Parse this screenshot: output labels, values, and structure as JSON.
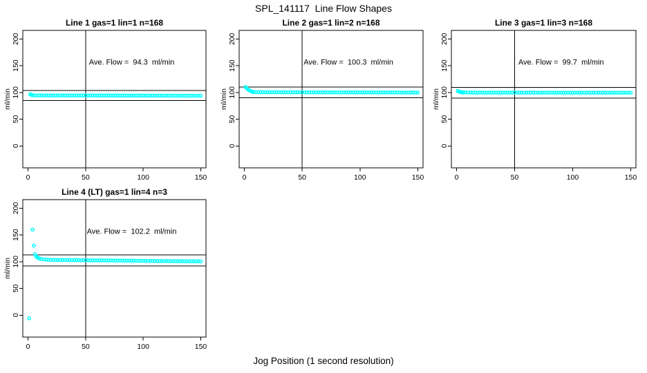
{
  "figure": {
    "title": "SPL_141117  Line Flow Shapes",
    "xlabel": "Jog Position (1 second resolution)",
    "background": "#ffffff",
    "axis_color": "#000000",
    "point_color": "#00ffff"
  },
  "chart_data": [
    {
      "type": "scatter",
      "title": "Line 1 gas=1 lin=1 n=168",
      "ylabel": "ml/min",
      "annotation": "Ave. Flow =  94.3  ml/min",
      "ave_flow_ml_min": 94.3,
      "n": 168,
      "xlim": [
        -4.5,
        154.5
      ],
      "ylim": [
        -41,
        216
      ],
      "xticks": [
        0,
        50,
        100,
        150
      ],
      "yticks": [
        0,
        50,
        100,
        150,
        200
      ],
      "vline_x": 50,
      "hlines": [
        103.7,
        84.9
      ],
      "annotation_pos": [
        90,
        152
      ],
      "legend_position": "none",
      "grid": false,
      "points": [
        [
          2,
          96.5
        ],
        [
          3,
          95.4
        ],
        [
          4,
          94.9
        ],
        [
          6,
          94.5
        ],
        [
          8,
          94.2
        ],
        [
          10,
          94.6
        ],
        [
          12,
          94.3
        ],
        [
          14,
          94.1
        ],
        [
          16,
          94.5
        ],
        [
          18,
          94.2
        ],
        [
          20,
          94.4
        ],
        [
          22,
          94.1
        ],
        [
          24,
          94.3
        ],
        [
          26,
          94.5
        ],
        [
          28,
          94.2
        ],
        [
          30,
          94.4
        ],
        [
          32,
          94.1
        ],
        [
          34,
          94.3
        ],
        [
          36,
          94.2
        ],
        [
          38,
          94.4
        ],
        [
          40,
          94.1
        ],
        [
          42,
          94.3
        ],
        [
          44,
          94.2
        ],
        [
          46,
          94.4
        ],
        [
          48,
          94.1
        ],
        [
          50,
          94.3
        ],
        [
          52,
          94.2
        ],
        [
          54,
          94.4
        ],
        [
          56,
          94.1
        ],
        [
          58,
          94.3
        ],
        [
          60,
          94.2
        ],
        [
          62,
          94.3
        ],
        [
          64,
          94.1
        ],
        [
          66,
          94.2
        ],
        [
          68,
          94.3
        ],
        [
          70,
          94.1
        ],
        [
          72,
          94.2
        ],
        [
          74,
          94.3
        ],
        [
          76,
          94.0
        ],
        [
          78,
          94.2
        ],
        [
          80,
          94.1
        ],
        [
          82,
          94.2
        ],
        [
          84,
          94.0
        ],
        [
          86,
          94.2
        ],
        [
          88,
          94.1
        ],
        [
          90,
          94.2
        ],
        [
          92,
          94.0
        ],
        [
          94,
          94.1
        ],
        [
          96,
          94.2
        ],
        [
          98,
          94.0
        ],
        [
          100,
          94.1
        ],
        [
          102,
          93.9
        ],
        [
          104,
          94.1
        ],
        [
          106,
          94.0
        ],
        [
          108,
          94.1
        ],
        [
          110,
          93.9
        ],
        [
          112,
          94.0
        ],
        [
          114,
          94.1
        ],
        [
          116,
          93.9
        ],
        [
          118,
          94.0
        ],
        [
          120,
          93.9
        ],
        [
          122,
          94.0
        ],
        [
          124,
          93.8
        ],
        [
          126,
          94.0
        ],
        [
          128,
          93.9
        ],
        [
          130,
          93.9
        ],
        [
          132,
          93.8
        ],
        [
          134,
          93.9
        ],
        [
          136,
          93.8
        ],
        [
          138,
          93.9
        ],
        [
          140,
          93.8
        ],
        [
          142,
          93.9
        ],
        [
          144,
          93.8
        ],
        [
          146,
          93.8
        ],
        [
          148,
          93.9
        ],
        [
          150,
          93.8
        ]
      ]
    },
    {
      "type": "scatter",
      "title": "Line 2 gas=1 lin=2 n=168",
      "ylabel": "ml/min",
      "annotation": "Ave. Flow =  100.3  ml/min",
      "ave_flow_ml_min": 100.3,
      "n": 168,
      "xlim": [
        -4.5,
        154.5
      ],
      "ylim": [
        -41,
        216
      ],
      "xticks": [
        0,
        50,
        100,
        150
      ],
      "yticks": [
        0,
        50,
        100,
        150,
        200
      ],
      "vline_x": 50,
      "hlines": [
        110.3,
        90.3
      ],
      "annotation_pos": [
        90,
        152
      ],
      "legend_position": "none",
      "grid": false,
      "points": [
        [
          1,
          110.3
        ],
        [
          2,
          108.0
        ],
        [
          3,
          106.0
        ],
        [
          4,
          104.3
        ],
        [
          5,
          103.0
        ],
        [
          6,
          102.0
        ],
        [
          7,
          101.3
        ],
        [
          8,
          100.8
        ],
        [
          10,
          100.5
        ],
        [
          12,
          100.4
        ],
        [
          14,
          100.6
        ],
        [
          16,
          100.3
        ],
        [
          18,
          100.5
        ],
        [
          20,
          100.2
        ],
        [
          22,
          100.4
        ],
        [
          24,
          100.3
        ],
        [
          26,
          100.5
        ],
        [
          28,
          100.2
        ],
        [
          30,
          100.4
        ],
        [
          32,
          100.3
        ],
        [
          34,
          100.2
        ],
        [
          36,
          100.4
        ],
        [
          38,
          100.3
        ],
        [
          40,
          100.2
        ],
        [
          42,
          100.4
        ],
        [
          44,
          100.2
        ],
        [
          46,
          100.3
        ],
        [
          48,
          100.2
        ],
        [
          50,
          100.4
        ],
        [
          52,
          100.2
        ],
        [
          54,
          100.3
        ],
        [
          56,
          100.1
        ],
        [
          58,
          100.3
        ],
        [
          60,
          100.2
        ],
        [
          62,
          100.3
        ],
        [
          64,
          100.1
        ],
        [
          66,
          100.2
        ],
        [
          68,
          100.3
        ],
        [
          70,
          100.1
        ],
        [
          72,
          100.2
        ],
        [
          74,
          100.1
        ],
        [
          76,
          100.3
        ],
        [
          78,
          100.1
        ],
        [
          80,
          100.2
        ],
        [
          82,
          100.0
        ],
        [
          84,
          100.2
        ],
        [
          86,
          100.1
        ],
        [
          88,
          100.2
        ],
        [
          90,
          100.0
        ],
        [
          92,
          100.1
        ],
        [
          94,
          100.2
        ],
        [
          96,
          100.0
        ],
        [
          98,
          100.1
        ],
        [
          100,
          100.0
        ],
        [
          102,
          100.1
        ],
        [
          104,
          100.0
        ],
        [
          106,
          100.1
        ],
        [
          108,
          99.9
        ],
        [
          110,
          100.1
        ],
        [
          112,
          100.0
        ],
        [
          114,
          100.0
        ],
        [
          116,
          99.9
        ],
        [
          118,
          100.0
        ],
        [
          120,
          99.9
        ],
        [
          122,
          100.0
        ],
        [
          124,
          99.9
        ],
        [
          126,
          100.0
        ],
        [
          128,
          99.8
        ],
        [
          130,
          100.0
        ],
        [
          132,
          99.9
        ],
        [
          134,
          99.9
        ],
        [
          136,
          99.8
        ],
        [
          138,
          99.9
        ],
        [
          140,
          99.8
        ],
        [
          142,
          99.9
        ],
        [
          144,
          99.8
        ],
        [
          146,
          99.9
        ],
        [
          148,
          99.8
        ],
        [
          150,
          99.8
        ]
      ]
    },
    {
      "type": "scatter",
      "title": "Line 3 gas=1 lin=3 n=168",
      "ylabel": "ml/min",
      "annotation": "Ave. Flow =  99.7  ml/min",
      "ave_flow_ml_min": 99.7,
      "n": 168,
      "xlim": [
        -4.5,
        154.5
      ],
      "ylim": [
        -41,
        216
      ],
      "xticks": [
        0,
        50,
        100,
        150
      ],
      "yticks": [
        0,
        50,
        100,
        150,
        200
      ],
      "vline_x": 50,
      "hlines": [
        109.7,
        89.7
      ],
      "annotation_pos": [
        90,
        152
      ],
      "legend_position": "none",
      "grid": false,
      "points": [
        [
          1,
          102.8
        ],
        [
          2,
          101.6
        ],
        [
          3,
          100.9
        ],
        [
          4,
          100.4
        ],
        [
          5,
          100.1
        ],
        [
          6,
          99.9
        ],
        [
          8,
          100.2
        ],
        [
          10,
          99.6
        ],
        [
          12,
          100.0
        ],
        [
          14,
          99.4
        ],
        [
          16,
          99.9
        ],
        [
          18,
          99.5
        ],
        [
          20,
          100.1
        ],
        [
          22,
          99.6
        ],
        [
          24,
          99.8
        ],
        [
          26,
          99.4
        ],
        [
          28,
          100.0
        ],
        [
          30,
          99.6
        ],
        [
          32,
          99.9
        ],
        [
          34,
          99.5
        ],
        [
          36,
          99.8
        ],
        [
          38,
          99.4
        ],
        [
          40,
          99.9
        ],
        [
          42,
          99.6
        ],
        [
          44,
          99.8
        ],
        [
          46,
          99.5
        ],
        [
          48,
          99.9
        ],
        [
          50,
          99.6
        ],
        [
          52,
          99.8
        ],
        [
          54,
          99.4
        ],
        [
          56,
          99.8
        ],
        [
          58,
          99.5
        ],
        [
          60,
          99.7
        ],
        [
          62,
          99.9
        ],
        [
          64,
          99.5
        ],
        [
          66,
          99.8
        ],
        [
          68,
          99.4
        ],
        [
          70,
          99.7
        ],
        [
          72,
          99.5
        ],
        [
          74,
          99.8
        ],
        [
          76,
          99.4
        ],
        [
          78,
          99.7
        ],
        [
          80,
          99.5
        ],
        [
          82,
          99.8
        ],
        [
          84,
          99.4
        ],
        [
          86,
          99.7
        ],
        [
          88,
          99.5
        ],
        [
          90,
          99.7
        ],
        [
          92,
          99.4
        ],
        [
          94,
          99.7
        ],
        [
          96,
          99.5
        ],
        [
          98,
          99.7
        ],
        [
          100,
          99.4
        ],
        [
          102,
          99.6
        ],
        [
          104,
          99.5
        ],
        [
          106,
          99.7
        ],
        [
          108,
          99.4
        ],
        [
          110,
          99.6
        ],
        [
          112,
          99.4
        ],
        [
          114,
          99.6
        ],
        [
          116,
          99.5
        ],
        [
          118,
          99.6
        ],
        [
          120,
          99.4
        ],
        [
          122,
          99.6
        ],
        [
          124,
          99.4
        ],
        [
          126,
          99.5
        ],
        [
          128,
          99.6
        ],
        [
          130,
          99.4
        ],
        [
          132,
          99.5
        ],
        [
          134,
          99.4
        ],
        [
          136,
          99.5
        ],
        [
          138,
          99.4
        ],
        [
          140,
          99.5
        ],
        [
          142,
          99.4
        ],
        [
          144,
          99.5
        ],
        [
          146,
          99.4
        ],
        [
          148,
          99.5
        ],
        [
          150,
          99.4
        ]
      ]
    },
    {
      "type": "scatter",
      "title": "Line 4 (LT) gas=1 lin=4 n=3",
      "ylabel": "ml/min",
      "annotation": "Ave. Flow =  102.2  ml/min",
      "ave_flow_ml_min": 102.2,
      "n": 3,
      "xlim": [
        -4.5,
        154.5
      ],
      "ylim": [
        -41,
        216
      ],
      "xticks": [
        0,
        50,
        100,
        150
      ],
      "yticks": [
        0,
        50,
        100,
        150,
        200
      ],
      "vline_x": 50,
      "hlines": [
        112.4,
        92.0
      ],
      "annotation_pos": [
        90,
        152
      ],
      "legend_position": "none",
      "grid": false,
      "points": [
        [
          1,
          -6
        ],
        [
          4,
          160
        ],
        [
          5,
          130
        ],
        [
          6,
          114
        ],
        [
          7,
          110.5
        ],
        [
          8,
          108
        ],
        [
          9,
          106.8
        ],
        [
          10,
          105.8
        ],
        [
          12,
          104.8
        ],
        [
          14,
          104.2
        ],
        [
          16,
          103.8
        ],
        [
          18,
          103.5
        ],
        [
          20,
          103.6
        ],
        [
          22,
          103.2
        ],
        [
          24,
          103.4
        ],
        [
          26,
          103.0
        ],
        [
          28,
          103.3
        ],
        [
          30,
          102.9
        ],
        [
          32,
          103.2
        ],
        [
          34,
          102.8
        ],
        [
          36,
          103.1
        ],
        [
          38,
          102.7
        ],
        [
          40,
          103.0
        ],
        [
          42,
          102.7
        ],
        [
          44,
          102.9
        ],
        [
          46,
          102.6
        ],
        [
          48,
          102.8
        ],
        [
          50,
          102.5
        ],
        [
          52,
          102.8
        ],
        [
          54,
          102.4
        ],
        [
          56,
          102.7
        ],
        [
          58,
          102.3
        ],
        [
          60,
          102.6
        ],
        [
          62,
          102.3
        ],
        [
          64,
          102.5
        ],
        [
          66,
          102.2
        ],
        [
          68,
          102.4
        ],
        [
          70,
          102.1
        ],
        [
          72,
          102.4
        ],
        [
          74,
          102.0
        ],
        [
          76,
          102.3
        ],
        [
          78,
          102.0
        ],
        [
          80,
          102.2
        ],
        [
          82,
          101.9
        ],
        [
          84,
          102.1
        ],
        [
          86,
          101.8
        ],
        [
          88,
          102.0
        ],
        [
          90,
          101.7
        ],
        [
          92,
          101.9
        ],
        [
          94,
          101.6
        ],
        [
          96,
          101.8
        ],
        [
          98,
          101.5
        ],
        [
          100,
          101.7
        ],
        [
          102,
          101.4
        ],
        [
          104,
          101.6
        ],
        [
          106,
          101.3
        ],
        [
          108,
          101.5
        ],
        [
          110,
          101.2
        ],
        [
          112,
          101.4
        ],
        [
          114,
          101.1
        ],
        [
          116,
          101.3
        ],
        [
          118,
          101.0
        ],
        [
          120,
          101.2
        ],
        [
          122,
          100.9
        ],
        [
          124,
          101.1
        ],
        [
          126,
          100.8
        ],
        [
          128,
          101.0
        ],
        [
          130,
          100.8
        ],
        [
          132,
          100.9
        ],
        [
          134,
          100.7
        ],
        [
          136,
          100.9
        ],
        [
          138,
          100.6
        ],
        [
          140,
          100.8
        ],
        [
          142,
          100.6
        ],
        [
          144,
          100.7
        ],
        [
          146,
          100.5
        ],
        [
          148,
          100.7
        ],
        [
          150,
          100.5
        ]
      ]
    }
  ]
}
